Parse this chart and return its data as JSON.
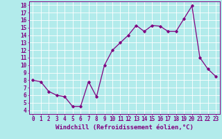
{
  "x": [
    0,
    1,
    2,
    3,
    4,
    5,
    6,
    7,
    8,
    9,
    10,
    11,
    12,
    13,
    14,
    15,
    16,
    17,
    18,
    19,
    20,
    21,
    22,
    23
  ],
  "y": [
    8.0,
    7.8,
    6.5,
    6.0,
    5.8,
    4.5,
    4.5,
    7.8,
    5.8,
    10.0,
    12.0,
    13.0,
    14.0,
    15.3,
    14.5,
    15.3,
    15.2,
    14.5,
    14.5,
    16.2,
    17.9,
    11.0,
    9.5,
    8.5
  ],
  "line_color": "#800080",
  "marker": "D",
  "marker_size": 1.8,
  "line_width": 0.9,
  "xlabel": "Windchill (Refroidissement éolien,°C)",
  "xlabel_fontsize": 6.5,
  "xlim": [
    -0.5,
    23.5
  ],
  "ylim": [
    3.5,
    18.5
  ],
  "yticks": [
    4,
    5,
    6,
    7,
    8,
    9,
    10,
    11,
    12,
    13,
    14,
    15,
    16,
    17,
    18
  ],
  "xticks": [
    0,
    1,
    2,
    3,
    4,
    5,
    6,
    7,
    8,
    9,
    10,
    11,
    12,
    13,
    14,
    15,
    16,
    17,
    18,
    19,
    20,
    21,
    22,
    23
  ],
  "tick_fontsize": 5.5,
  "bg_color": "#b2ebeb",
  "grid_color": "#ffffff",
  "axis_color": "#800080"
}
